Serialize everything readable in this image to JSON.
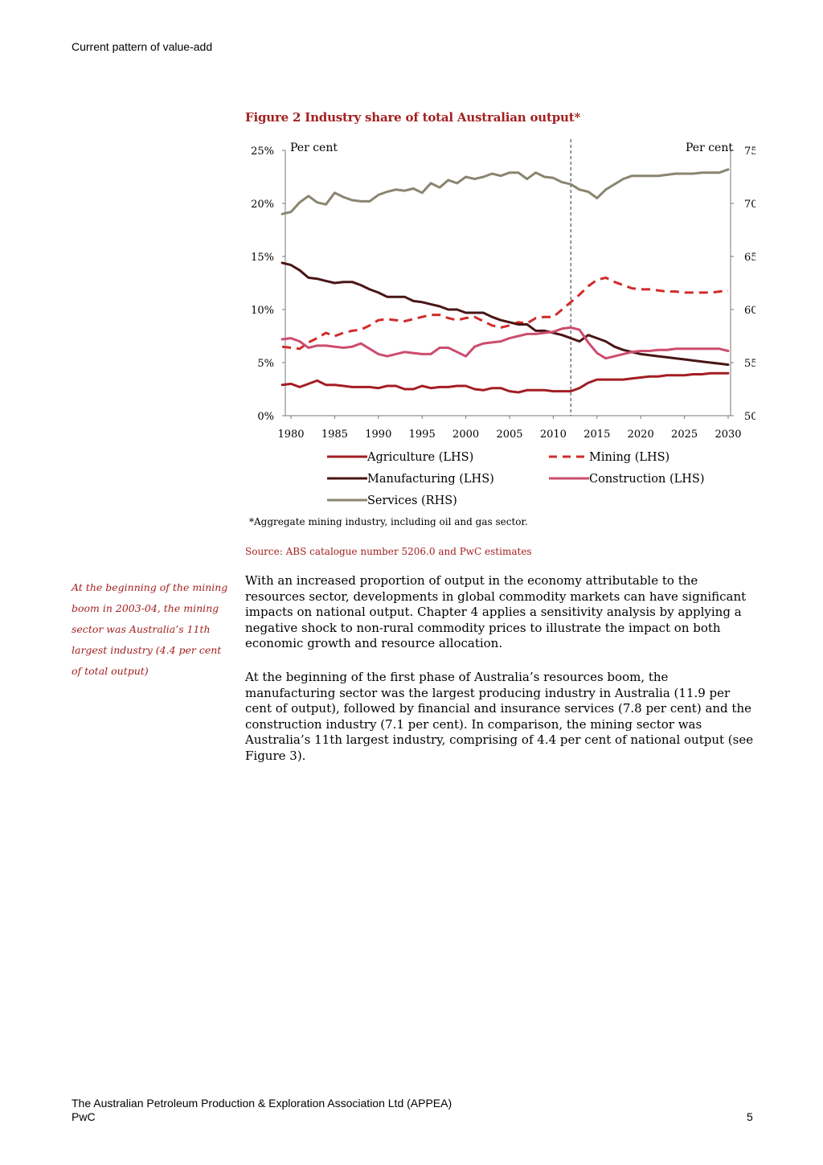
{
  "header": {
    "title": "Current pattern of value-add"
  },
  "figure": {
    "title": "Figure 2 Industry share of total Australian output*",
    "footnote": "*Aggregate mining industry, including oil and gas sector.",
    "source": "Source: ABS catalogue number 5206.0 and PwC estimates"
  },
  "chart_data": {
    "type": "line",
    "left_axis": {
      "unit_label": "Per cent",
      "ticks": [
        "0%",
        "5%",
        "10%",
        "15%",
        "20%",
        "25%"
      ],
      "ylim": [
        0,
        25
      ]
    },
    "right_axis": {
      "unit_label": "Per cent",
      "ticks": [
        "50%",
        "55%",
        "60%",
        "65%",
        "70%",
        "75%"
      ],
      "ylim": [
        50,
        75
      ]
    },
    "x_ticks": [
      "1980",
      "1985",
      "1990",
      "1995",
      "2000",
      "2005",
      "2010",
      "2015",
      "2020",
      "2025",
      "2030"
    ],
    "xlim": [
      1980,
      2030
    ],
    "forecast_divider_year": 2012,
    "grid": false,
    "legend_placement": "bottom",
    "series": [
      {
        "name": "Agriculture (LHS)",
        "axis": "left",
        "color": "#a31d24",
        "dash": "solid",
        "x": [
          1979,
          1980,
          1981,
          1982,
          1983,
          1984,
          1985,
          1986,
          1987,
          1988,
          1989,
          1990,
          1991,
          1992,
          1993,
          1994,
          1995,
          1996,
          1997,
          1998,
          1999,
          2000,
          2001,
          2002,
          2003,
          2004,
          2005,
          2006,
          2007,
          2008,
          2009,
          2010,
          2011,
          2012,
          2013,
          2014,
          2015,
          2016,
          2017,
          2018,
          2019,
          2020,
          2021,
          2022,
          2023,
          2024,
          2025,
          2026,
          2027,
          2028,
          2029,
          2030
        ],
        "values": [
          2.9,
          3.0,
          2.7,
          3.0,
          3.3,
          2.9,
          2.9,
          2.8,
          2.7,
          2.7,
          2.7,
          2.6,
          2.8,
          2.8,
          2.5,
          2.5,
          2.8,
          2.6,
          2.7,
          2.7,
          2.8,
          2.8,
          2.5,
          2.4,
          2.6,
          2.6,
          2.3,
          2.2,
          2.4,
          2.4,
          2.4,
          2.3,
          2.3,
          2.3,
          2.6,
          3.1,
          3.4,
          3.4,
          3.4,
          3.4,
          3.5,
          3.6,
          3.7,
          3.7,
          3.8,
          3.8,
          3.8,
          3.9,
          3.9,
          4.0,
          4.0,
          4.0
        ]
      },
      {
        "name": "Mining (LHS)",
        "axis": "left",
        "color": "#d12b2b",
        "dash": "dashed",
        "x": [
          1979,
          1980,
          1981,
          1982,
          1983,
          1984,
          1985,
          1986,
          1987,
          1988,
          1989,
          1990,
          1991,
          1992,
          1993,
          1994,
          1995,
          1996,
          1997,
          1998,
          1999,
          2000,
          2001,
          2002,
          2003,
          2004,
          2005,
          2006,
          2007,
          2008,
          2009,
          2010,
          2011,
          2012,
          2013,
          2014,
          2015,
          2016,
          2017,
          2018,
          2019,
          2020,
          2021,
          2022,
          2023,
          2024,
          2025,
          2026,
          2027,
          2028,
          2029,
          2030
        ],
        "values": [
          6.5,
          6.4,
          6.3,
          6.9,
          7.3,
          7.8,
          7.5,
          7.8,
          8.0,
          8.1,
          8.5,
          9.0,
          9.1,
          9.0,
          8.9,
          9.1,
          9.3,
          9.5,
          9.5,
          9.2,
          9.0,
          9.2,
          9.3,
          8.9,
          8.5,
          8.3,
          8.5,
          8.8,
          8.7,
          9.2,
          9.3,
          9.3,
          10.0,
          10.7,
          11.4,
          12.2,
          12.8,
          13.0,
          12.6,
          12.3,
          12.0,
          11.9,
          11.9,
          11.8,
          11.7,
          11.7,
          11.6,
          11.6,
          11.6,
          11.6,
          11.7,
          11.8
        ]
      },
      {
        "name": "Manufacturing (LHS)",
        "axis": "left",
        "color": "#4a1515",
        "dash": "solid",
        "x": [
          1979,
          1980,
          1981,
          1982,
          1983,
          1984,
          1985,
          1986,
          1987,
          1988,
          1989,
          1990,
          1991,
          1992,
          1993,
          1994,
          1995,
          1996,
          1997,
          1998,
          1999,
          2000,
          2001,
          2002,
          2003,
          2004,
          2005,
          2006,
          2007,
          2008,
          2009,
          2010,
          2011,
          2012,
          2013,
          2014,
          2015,
          2016,
          2017,
          2018,
          2019,
          2020,
          2021,
          2022,
          2023,
          2024,
          2025,
          2026,
          2027,
          2028,
          2029,
          2030
        ],
        "values": [
          14.4,
          14.2,
          13.7,
          13.0,
          12.9,
          12.7,
          12.5,
          12.6,
          12.6,
          12.3,
          11.9,
          11.6,
          11.2,
          11.2,
          11.2,
          10.8,
          10.7,
          10.5,
          10.3,
          10.0,
          10.0,
          9.7,
          9.7,
          9.7,
          9.3,
          9.0,
          8.8,
          8.6,
          8.6,
          8.0,
          8.0,
          7.8,
          7.6,
          7.3,
          7.0,
          7.6,
          7.3,
          7.0,
          6.5,
          6.2,
          6.0,
          5.8,
          5.7,
          5.6,
          5.5,
          5.4,
          5.3,
          5.2,
          5.1,
          5.0,
          4.9,
          4.8
        ]
      },
      {
        "name": "Construction (LHS)",
        "axis": "left",
        "color": "#cc4d6e",
        "dash": "solid",
        "x": [
          1979,
          1980,
          1981,
          1982,
          1983,
          1984,
          1985,
          1986,
          1987,
          1988,
          1989,
          1990,
          1991,
          1992,
          1993,
          1994,
          1995,
          1996,
          1997,
          1998,
          1999,
          2000,
          2001,
          2002,
          2003,
          2004,
          2005,
          2006,
          2007,
          2008,
          2009,
          2010,
          2011,
          2012,
          2013,
          2014,
          2015,
          2016,
          2017,
          2018,
          2019,
          2020,
          2021,
          2022,
          2023,
          2024,
          2025,
          2026,
          2027,
          2028,
          2029,
          2030
        ],
        "values": [
          7.2,
          7.3,
          7.0,
          6.4,
          6.6,
          6.6,
          6.5,
          6.4,
          6.5,
          6.8,
          6.3,
          5.8,
          5.6,
          5.8,
          6.0,
          5.9,
          5.8,
          5.8,
          6.4,
          6.4,
          6.0,
          5.6,
          6.5,
          6.8,
          6.9,
          7.0,
          7.3,
          7.5,
          7.7,
          7.7,
          7.8,
          7.9,
          8.2,
          8.3,
          8.1,
          6.9,
          5.9,
          5.4,
          5.6,
          5.8,
          6.0,
          6.1,
          6.1,
          6.2,
          6.2,
          6.3,
          6.3,
          6.3,
          6.3,
          6.3,
          6.3,
          6.1
        ]
      },
      {
        "name": "Services (RHS)",
        "axis": "right",
        "color": "#8a8570",
        "dash": "solid",
        "x": [
          1979,
          1980,
          1981,
          1982,
          1983,
          1984,
          1985,
          1986,
          1987,
          1988,
          1989,
          1990,
          1991,
          1992,
          1993,
          1994,
          1995,
          1996,
          1997,
          1998,
          1999,
          2000,
          2001,
          2002,
          2003,
          2004,
          2005,
          2006,
          2007,
          2008,
          2009,
          2010,
          2011,
          2012,
          2013,
          2014,
          2015,
          2016,
          2017,
          2018,
          2019,
          2020,
          2021,
          2022,
          2023,
          2024,
          2025,
          2026,
          2027,
          2028,
          2029,
          2030
        ],
        "values": [
          69.0,
          69.2,
          70.1,
          70.7,
          70.1,
          69.9,
          71.0,
          70.6,
          70.3,
          70.2,
          70.2,
          70.8,
          71.1,
          71.3,
          71.2,
          71.4,
          71.0,
          71.9,
          71.5,
          72.2,
          71.9,
          72.5,
          72.3,
          72.5,
          72.8,
          72.6,
          72.9,
          72.9,
          72.3,
          72.9,
          72.5,
          72.4,
          72.0,
          71.8,
          71.3,
          71.1,
          70.5,
          71.3,
          71.8,
          72.3,
          72.6,
          72.6,
          72.6,
          72.6,
          72.7,
          72.8,
          72.8,
          72.8,
          72.9,
          72.9,
          72.9,
          73.2
        ]
      }
    ]
  },
  "sidenote": "At the beginning of the mining boom in 2003-04, the mining sector was Australia’s 11th largest industry (4.4 per cent of total output)",
  "body": {
    "paragraph1": "With an increased proportion of output in the economy attributable to the resources sector, developments in global commodity markets can have significant impacts on national output. Chapter 4 applies a sensitivity analysis by applying a negative shock to non-rural commodity prices to illustrate the impact on both economic growth and resource allocation.",
    "paragraph2": "At the beginning of the first phase of Australia’s resources boom, the manufacturing sector was the largest producing industry in Australia (11.9 per cent of output), followed by financial and insurance services (7.8 per cent) and the construction industry (7.1 per cent). In comparison, the mining sector was Australia’s 11th largest industry, comprising of 4.4 per cent of national output (see Figure 3)."
  },
  "footer": {
    "line1": "The Australian Petroleum Production & Exploration Association Ltd (APPEA)",
    "line2": "PwC",
    "page_number": "5"
  }
}
